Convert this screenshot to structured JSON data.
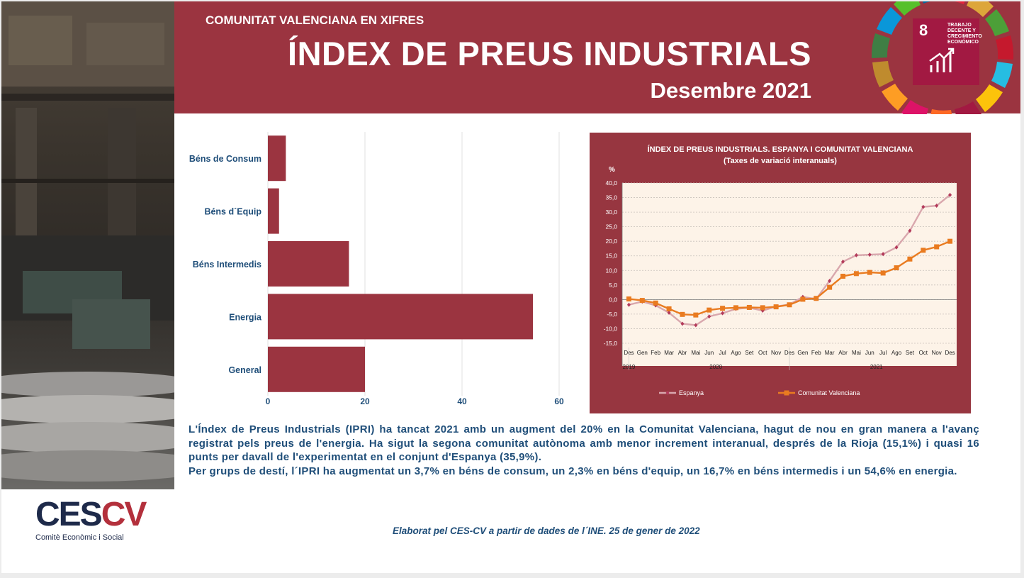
{
  "header": {
    "suptitle": "COMUNITAT VALENCIANA EN XIFRES",
    "title": "ÍNDEX DE PREUS INDUSTRIALS",
    "period": "Desembre 2021"
  },
  "sdg_badge": {
    "number": "8",
    "label": "TRABAJO DECENTE Y CRECIMIENTO ECONÓMICO",
    "icon": "growth-chart-icon"
  },
  "chart_data": [
    {
      "type": "bar",
      "orientation": "horizontal",
      "categories": [
        "Béns de Consum",
        "Béns d´Equip",
        "Béns Intermedis",
        "Energia",
        "General"
      ],
      "values": [
        3.7,
        2.3,
        16.7,
        54.6,
        20.0
      ],
      "xticks": [
        "0",
        "20",
        "40",
        "60"
      ],
      "xlim": [
        0,
        60
      ],
      "grid": true,
      "color": "#9b3440"
    },
    {
      "type": "line",
      "title": "ÍNDEX DE PREUS INDUSTRIALS. ESPANYA I COMUNITAT VALENCIANA",
      "subtitle": "(Taxes de variació interanuals)",
      "ylabel": "%",
      "ylim": [
        -15,
        40
      ],
      "yticks": [
        "40,0",
        "35,0",
        "30,0",
        "25,0",
        "20,0",
        "15,0",
        "10,0",
        "5,0",
        "0,0",
        "-5,0",
        "-10,0",
        "-15,0"
      ],
      "x": [
        "Des",
        "Gen",
        "Feb",
        "Mar",
        "Abr",
        "Mai",
        "Jun",
        "Jul",
        "Ago",
        "Set",
        "Oct",
        "Nov",
        "Des",
        "Gen",
        "Feb",
        "Mar",
        "Abr",
        "Mai",
        "Jun",
        "Jul",
        "Ago",
        "Set",
        "Oct",
        "Nov",
        "Des"
      ],
      "year_labels": [
        {
          "label": "2019",
          "index": 0
        },
        {
          "label": "2020",
          "index": 6.5
        },
        {
          "label": "2021",
          "index": 18.5
        }
      ],
      "series": [
        {
          "name": "Espanya",
          "color": "#d9a7ad",
          "marker": "diamond",
          "values": [
            -1.8,
            -0.7,
            -2.0,
            -4.5,
            -8.3,
            -8.8,
            -5.8,
            -4.7,
            -3.2,
            -2.8,
            -3.8,
            -2.4,
            -1.7,
            0.9,
            0.2,
            6.4,
            13.0,
            15.2,
            15.4,
            15.6,
            17.9,
            23.6,
            31.8,
            32.2,
            35.9
          ]
        },
        {
          "name": "Comunitat Valenciana",
          "color": "#e97b20",
          "marker": "square",
          "values": [
            0.2,
            -0.3,
            -1.2,
            -3.2,
            -5.1,
            -5.3,
            -3.6,
            -3.0,
            -2.8,
            -2.7,
            -2.8,
            -2.5,
            -1.8,
            0.1,
            0.4,
            4.2,
            8.0,
            8.9,
            9.3,
            9.1,
            10.9,
            13.9,
            16.9,
            18.1,
            20.0
          ]
        }
      ],
      "grid": true,
      "legend_position": "bottom"
    }
  ],
  "text": {
    "p1": "L'Índex de Preus Industrials (IPRI) ha tancat 2021 amb un augment del 20% en la Comunitat Valenciana, hagut de nou en gran manera a l'avanç registrat pels preus de l'energia. Ha sigut la segona comunitat autònoma amb menor increment interanual, després de la Rioja (15,1%) i quasi 16 punts per davall de l'experimentat en el conjunt d'Espanya (35,9%).",
    "p2": "Per grups de destí, l´IPRI ha augmentat un 3,7% en béns de consum, un 2,3% en béns d'equip, un 16,7% en béns intermedis i un 54,6% en energia."
  },
  "footer": "Elaborat pel CES-CV a partir de dades de l´INE. 25 de gener de 2022",
  "logo": {
    "main_a": "CES",
    "main_b": "CV",
    "sub": "Comitè Econòmic i Social"
  },
  "colors": {
    "brand": "#9b3440",
    "text": "#1f4e79",
    "spain": "#d9a7ad",
    "cv": "#e97b20"
  }
}
